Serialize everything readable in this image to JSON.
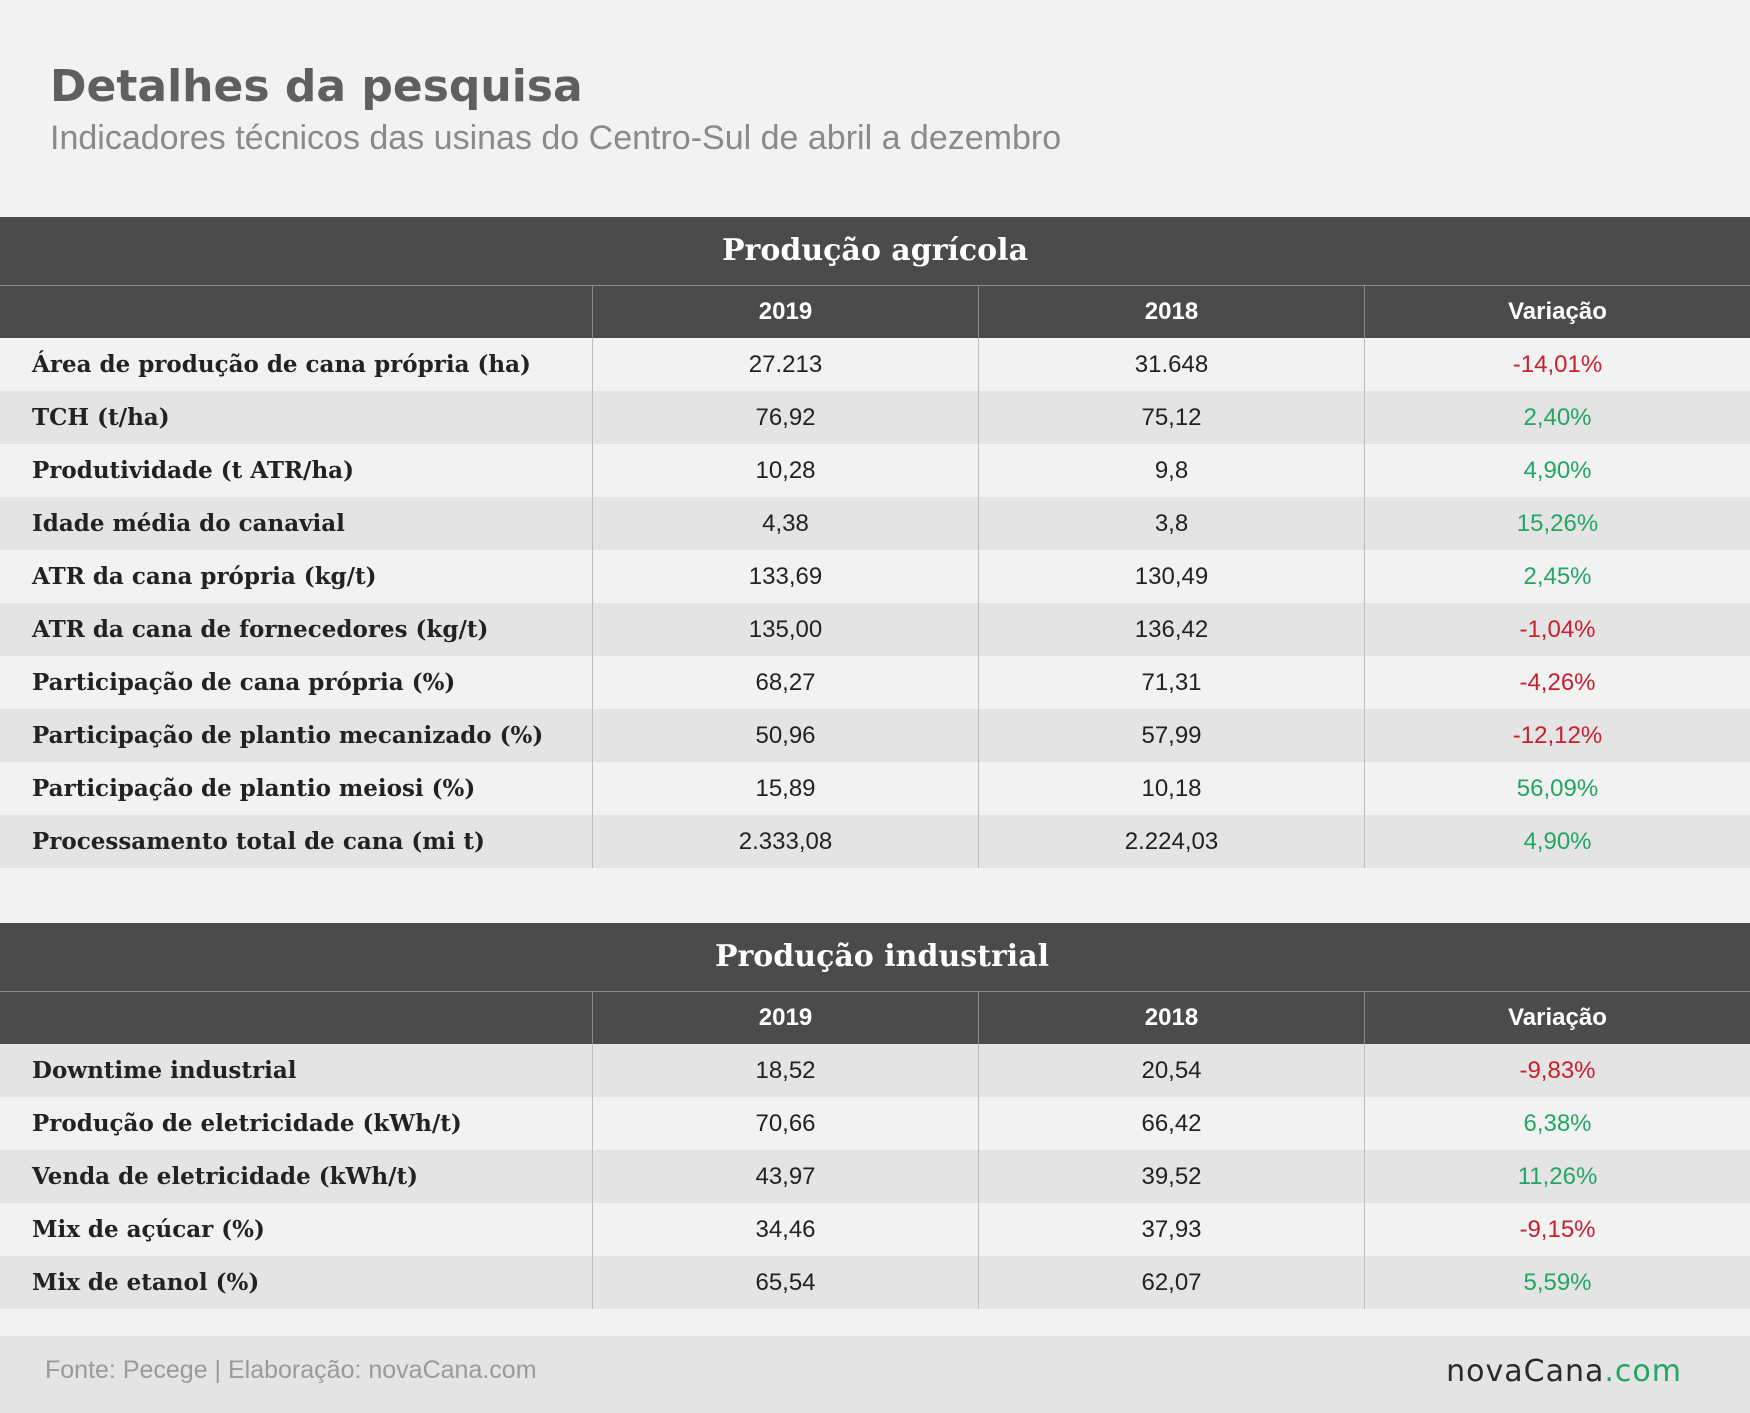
{
  "header": {
    "title": "Detalhes da pesquisa",
    "subtitle": "Indicadores técnicos das usinas do Centro-Sul de abril a dezembro"
  },
  "colors": {
    "negative": "#c8202f",
    "positive": "#23a565",
    "header_bg": "#4b4b4b"
  },
  "agricola": {
    "title": "Produção agrícola",
    "columns": [
      "",
      "2019",
      "2018",
      "Variação"
    ],
    "rows": [
      {
        "label": "Área de produção de cana própria (ha)",
        "v2019": "27.213",
        "v2018": "31.648",
        "var": "-14,01%"
      },
      {
        "label": "TCH (t/ha)",
        "v2019": "76,92",
        "v2018": "75,12",
        "var": "2,40%"
      },
      {
        "label": "Produtividade (t ATR/ha)",
        "v2019": "10,28",
        "v2018": "9,8",
        "var": "4,90%"
      },
      {
        "label": "Idade média do canavial",
        "v2019": "4,38",
        "v2018": "3,8",
        "var": "15,26%"
      },
      {
        "label": "ATR da cana própria (kg/t)",
        "v2019": "133,69",
        "v2018": "130,49",
        "var": "2,45%"
      },
      {
        "label": "ATR da cana de fornecedores (kg/t)",
        "v2019": "135,00",
        "v2018": "136,42",
        "var": "-1,04%"
      },
      {
        "label": "Participação de cana própria (%)",
        "v2019": "68,27",
        "v2018": "71,31",
        "var": "-4,26%"
      },
      {
        "label": "Participação de plantio mecanizado (%)",
        "v2019": "50,96",
        "v2018": "57,99",
        "var": "-12,12%"
      },
      {
        "label": "Participação de plantio meiosi (%)",
        "v2019": "15,89",
        "v2018": "10,18",
        "var": "56,09%"
      },
      {
        "label": "Processamento total de cana (mi t)",
        "v2019": "2.333,08",
        "v2018": "2.224,03",
        "var": "4,90%"
      }
    ]
  },
  "industrial": {
    "title": "Produção industrial",
    "columns": [
      "",
      "2019",
      "2018",
      "Variação"
    ],
    "rows": [
      {
        "label": "Downtime industrial",
        "v2019": "18,52",
        "v2018": "20,54",
        "var": "-9,83%"
      },
      {
        "label": "Produção de eletricidade (kWh/t)",
        "v2019": "70,66",
        "v2018": "66,42",
        "var": "6,38%"
      },
      {
        "label": "Venda de eletricidade (kWh/t)",
        "v2019": "43,97",
        "v2018": "39,52",
        "var": "11,26%"
      },
      {
        "label": "Mix de açúcar (%)",
        "v2019": "34,46",
        "v2018": "37,93",
        "var": "-9,15%"
      },
      {
        "label": "Mix de etanol (%)",
        "v2019": "65,54",
        "v2018": "62,07",
        "var": "5,59%"
      }
    ]
  },
  "footer": {
    "source": "Fonte: Pecege | Elaboração: novaCana.com",
    "logo_main": "novaCana",
    "logo_suffix": ".com"
  }
}
